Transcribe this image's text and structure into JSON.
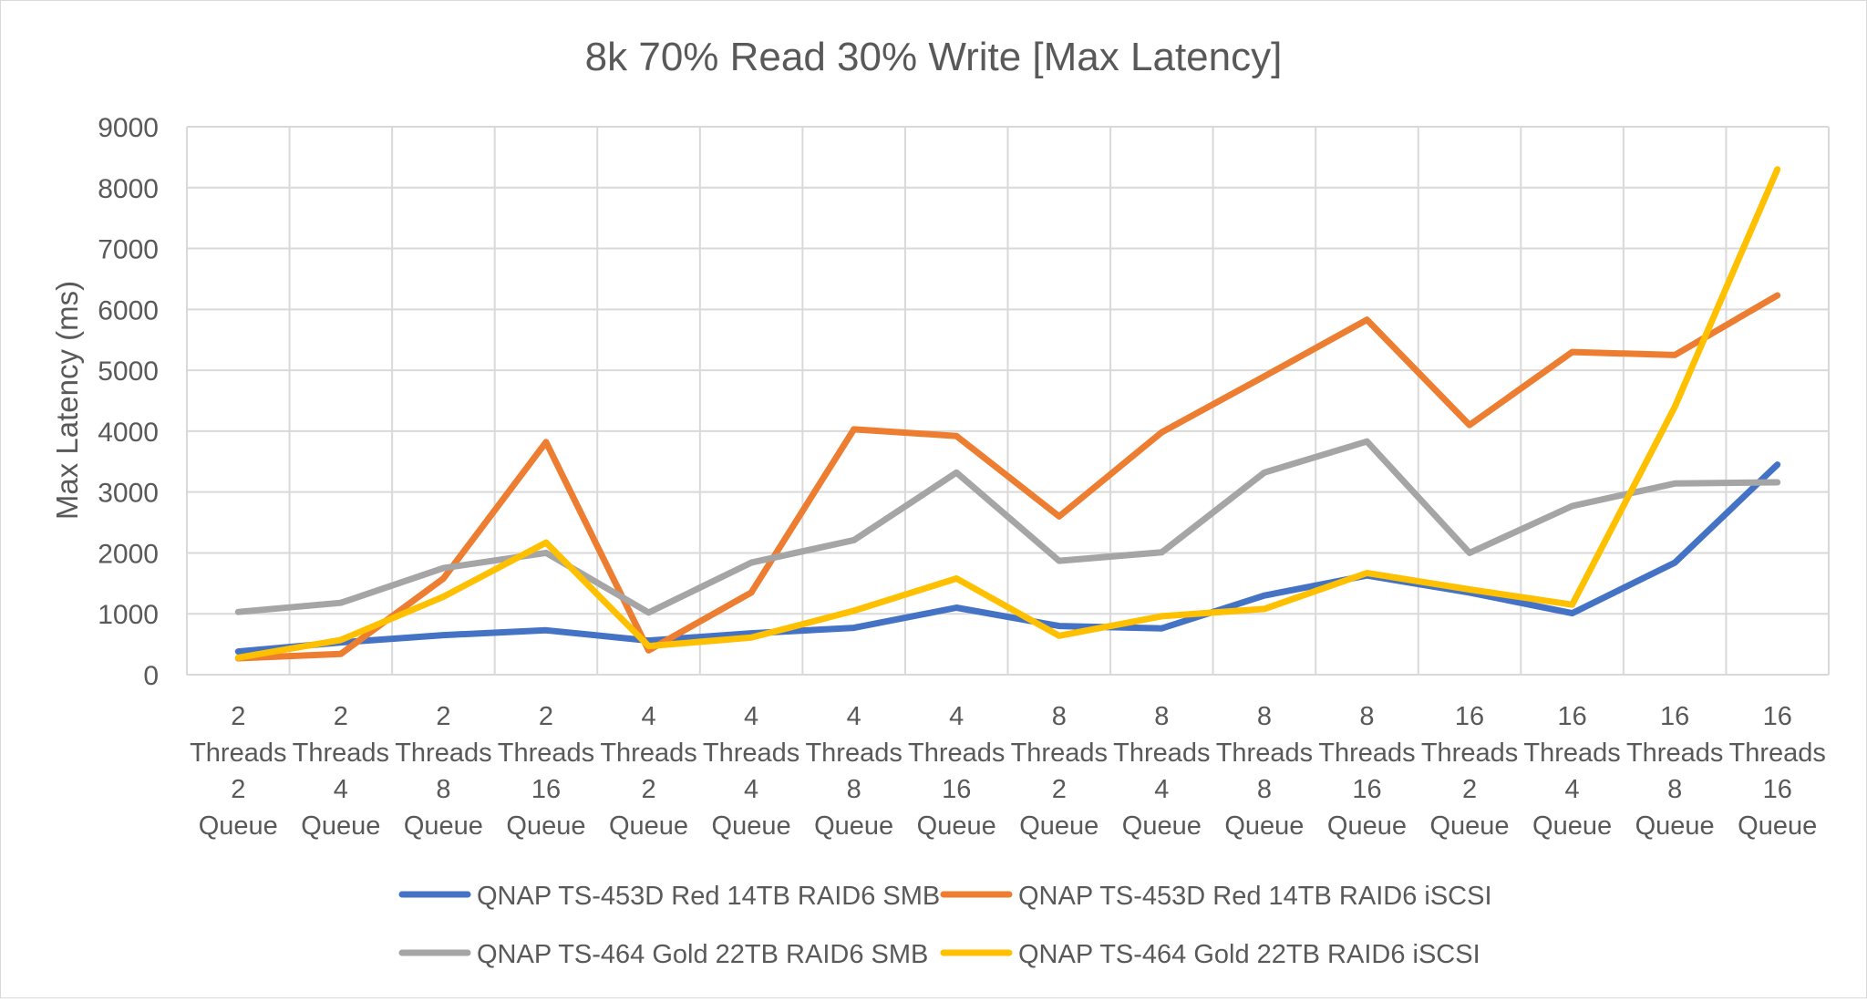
{
  "chart_data": {
    "type": "line",
    "title": "8k 70% Read 30% Write [Max Latency]",
    "xlabel": "",
    "ylabel": "Max Latency (ms)",
    "ylim": [
      0,
      9000
    ],
    "yticks": [
      "0",
      "1000",
      "2000",
      "3000",
      "4000",
      "5000",
      "6000",
      "7000",
      "8000",
      "9000"
    ],
    "grid": true,
    "legend_position": "bottom",
    "categories": [
      [
        "2",
        "Threads",
        "2",
        "Queue"
      ],
      [
        "2",
        "Threads",
        "4",
        "Queue"
      ],
      [
        "2",
        "Threads",
        "8",
        "Queue"
      ],
      [
        "2",
        "Threads",
        "16",
        "Queue"
      ],
      [
        "4",
        "Threads",
        "2",
        "Queue"
      ],
      [
        "4",
        "Threads",
        "4",
        "Queue"
      ],
      [
        "4",
        "Threads",
        "8",
        "Queue"
      ],
      [
        "4",
        "Threads",
        "16",
        "Queue"
      ],
      [
        "8",
        "Threads",
        "2",
        "Queue"
      ],
      [
        "8",
        "Threads",
        "4",
        "Queue"
      ],
      [
        "8",
        "Threads",
        "8",
        "Queue"
      ],
      [
        "8",
        "Threads",
        "16",
        "Queue"
      ],
      [
        "16",
        "Threads",
        "2",
        "Queue"
      ],
      [
        "16",
        "Threads",
        "4",
        "Queue"
      ],
      [
        "16",
        "Threads",
        "8",
        "Queue"
      ],
      [
        "16",
        "Threads",
        "16",
        "Queue"
      ]
    ],
    "series": [
      {
        "name": "QNAP TS-453D Red 14TB RAID6 SMB",
        "color": "#4472C4",
        "values": [
          380,
          530,
          650,
          730,
          560,
          680,
          770,
          1100,
          800,
          760,
          1300,
          1630,
          1350,
          1010,
          1840,
          3450
        ]
      },
      {
        "name": "QNAP TS-453D Red 14TB RAID6 iSCSI",
        "color": "#ED7D31",
        "values": [
          270,
          340,
          1580,
          3820,
          400,
          1350,
          4030,
          3920,
          2600,
          3980,
          4900,
          5830,
          4100,
          5300,
          5250,
          6230
        ]
      },
      {
        "name": "QNAP TS-464 Gold 22TB RAID6 SMB",
        "color": "#A5A5A5",
        "values": [
          1030,
          1180,
          1750,
          2000,
          1020,
          1840,
          2210,
          3320,
          1870,
          2010,
          3320,
          3830,
          2000,
          2770,
          3140,
          3160
        ]
      },
      {
        "name": "QNAP TS-464 Gold 22TB RAID6 iSCSI",
        "color": "#FFC000",
        "values": [
          280,
          570,
          1280,
          2170,
          470,
          610,
          1050,
          1580,
          640,
          960,
          1080,
          1670,
          1400,
          1150,
          4400,
          8300
        ]
      }
    ]
  }
}
